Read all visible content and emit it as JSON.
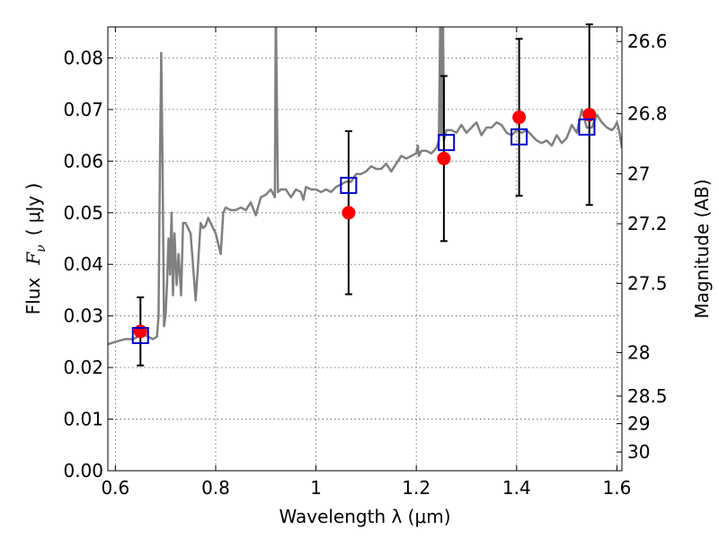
{
  "chart_data": {
    "type": "scatter",
    "xlabel": "Wavelength  λ (μm)",
    "ylabel_text": "Flux",
    "ylabel_symbol": "F",
    "ylabel_subscript": "ν",
    "ylabel_unit": "( μJy )",
    "y2label": "Magnitude (AB)",
    "xlim": [
      0.585,
      1.61
    ],
    "ylim": [
      0,
      0.086
    ],
    "x_ticks": [
      0.6,
      0.8,
      1.0,
      1.2,
      1.4,
      1.6
    ],
    "x_tick_labels": [
      "0.6",
      "0.8",
      "1",
      "1.2",
      "1.4",
      "1.6"
    ],
    "y_ticks": [
      0.0,
      0.01,
      0.02,
      0.03,
      0.04,
      0.05,
      0.06,
      0.07,
      0.08
    ],
    "y_tick_labels": [
      "0.00",
      "0.01",
      "0.02",
      "0.03",
      "0.04",
      "0.05",
      "0.06",
      "0.07",
      "0.08"
    ],
    "y2_ticks": [
      26.6,
      26.8,
      27,
      27.2,
      27.5,
      28,
      28.5,
      29,
      30
    ],
    "y2_tick_labels": [
      "26.6",
      "26.8",
      "27",
      "27.2",
      "27.5",
      "28",
      "28.5",
      "29",
      "30"
    ],
    "grid": true,
    "colors": {
      "model": "#808080",
      "observed": "#ff0000",
      "synthetic": "#0000cc",
      "errorbar": "#000000"
    },
    "series": [
      {
        "kind": "model_sed",
        "x": [
          0.585,
          0.6,
          0.62,
          0.635,
          0.645,
          0.655,
          0.665,
          0.675,
          0.683,
          0.686,
          0.689,
          0.6915,
          0.694,
          0.697,
          0.7,
          0.703,
          0.706,
          0.709,
          0.712,
          0.715,
          0.718,
          0.722,
          0.726,
          0.731,
          0.735,
          0.74,
          0.75,
          0.76,
          0.765,
          0.77,
          0.775,
          0.78,
          0.785,
          0.79,
          0.8,
          0.81,
          0.815,
          0.82,
          0.83,
          0.84,
          0.85,
          0.86,
          0.87,
          0.88,
          0.89,
          0.9,
          0.91,
          0.918,
          0.92,
          0.924,
          0.93,
          0.94,
          0.95,
          0.96,
          0.97,
          0.975,
          0.98,
          0.99,
          1.0,
          1.01,
          1.02,
          1.03,
          1.04,
          1.05,
          1.06,
          1.07,
          1.08,
          1.09,
          1.1,
          1.11,
          1.12,
          1.13,
          1.14,
          1.15,
          1.16,
          1.17,
          1.18,
          1.19,
          1.2,
          1.203,
          1.205,
          1.21,
          1.22,
          1.23,
          1.24,
          1.245,
          1.248,
          1.25,
          1.253,
          1.255,
          1.26,
          1.27,
          1.28,
          1.29,
          1.3,
          1.31,
          1.32,
          1.33,
          1.34,
          1.35,
          1.36,
          1.37,
          1.38,
          1.39,
          1.4,
          1.41,
          1.42,
          1.43,
          1.44,
          1.45,
          1.46,
          1.47,
          1.48,
          1.49,
          1.5,
          1.51,
          1.52,
          1.53,
          1.54,
          1.55,
          1.56,
          1.57,
          1.58,
          1.59,
          1.595,
          1.6,
          1.603,
          1.606,
          1.61
        ],
        "y": [
          0.0245,
          0.025,
          0.0255,
          0.0255,
          0.026,
          0.0265,
          0.026,
          0.0255,
          0.026,
          0.03,
          0.06,
          0.081,
          0.06,
          0.028,
          0.03,
          0.036,
          0.045,
          0.038,
          0.05,
          0.034,
          0.046,
          0.036,
          0.042,
          0.034,
          0.048,
          0.048,
          0.046,
          0.033,
          0.04,
          0.048,
          0.047,
          0.0475,
          0.049,
          0.048,
          0.046,
          0.042,
          0.05,
          0.051,
          0.0505,
          0.0505,
          0.051,
          0.0505,
          0.052,
          0.0495,
          0.053,
          0.0535,
          0.0545,
          0.053,
          0.09,
          0.054,
          0.0545,
          0.0545,
          0.053,
          0.0545,
          0.054,
          0.0525,
          0.055,
          0.0545,
          0.0545,
          0.054,
          0.0545,
          0.054,
          0.055,
          0.0555,
          0.056,
          0.056,
          0.0575,
          0.0575,
          0.058,
          0.059,
          0.0585,
          0.0585,
          0.0595,
          0.058,
          0.0595,
          0.061,
          0.0605,
          0.061,
          0.0615,
          0.063,
          0.061,
          0.062,
          0.062,
          0.0615,
          0.0625,
          0.064,
          0.09,
          0.065,
          0.09,
          0.064,
          0.066,
          0.066,
          0.0655,
          0.067,
          0.0655,
          0.0665,
          0.0675,
          0.065,
          0.0665,
          0.0665,
          0.0675,
          0.067,
          0.0655,
          0.065,
          0.066,
          0.0655,
          0.066,
          0.065,
          0.064,
          0.0635,
          0.064,
          0.063,
          0.065,
          0.0635,
          0.0645,
          0.067,
          0.0655,
          0.07,
          0.0665,
          0.0665,
          0.069,
          0.0675,
          0.0665,
          0.066,
          0.0665,
          0.0675,
          0.0665,
          0.065,
          0.0625
        ]
      },
      {
        "kind": "observed",
        "x": [
          0.65,
          1.065,
          1.255,
          1.405,
          1.545
        ],
        "y": [
          0.027,
          0.05,
          0.0605,
          0.0685,
          0.069
        ],
        "err": [
          0.0066,
          0.0158,
          0.016,
          0.0152,
          0.0175
        ]
      },
      {
        "kind": "synthetic",
        "x": [
          0.65,
          1.065,
          1.26,
          1.405,
          1.54
        ],
        "y": [
          0.0262,
          0.0553,
          0.0636,
          0.0647,
          0.0666
        ]
      }
    ]
  }
}
